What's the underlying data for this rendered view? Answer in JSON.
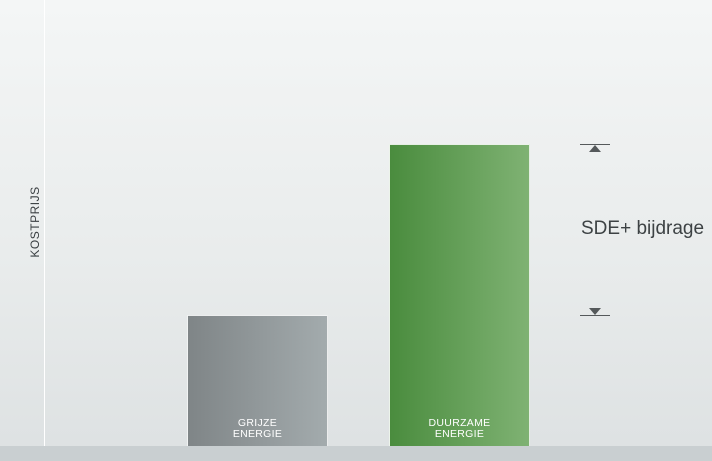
{
  "chart_data": {
    "type": "bar",
    "title": "",
    "xlabel": "",
    "ylabel": "KOSTPRIJS",
    "categories": [
      {
        "line1": "GRIJZE",
        "line2": "ENERGIE"
      },
      {
        "line1": "DUURZAME",
        "line2": "ENERGIE"
      }
    ],
    "values": [
      1.0,
      2.3
    ],
    "ylim": [
      0,
      3.4
    ],
    "grid": false,
    "colors": [
      "#8f9698",
      "#5f9f52"
    ],
    "annotation": {
      "label": "SDE+ bijdrage",
      "from_value": 1.0,
      "to_value": 2.3
    }
  }
}
